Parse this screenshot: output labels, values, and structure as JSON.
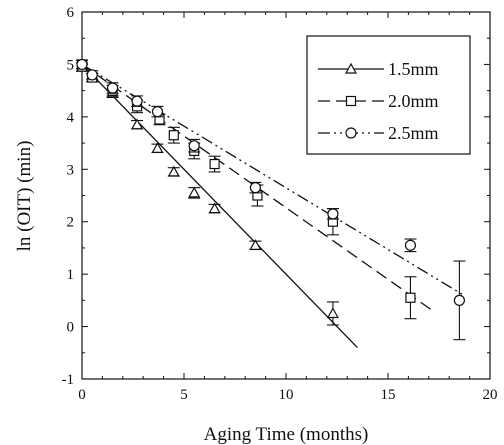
{
  "chart_data": {
    "type": "scatter",
    "xlabel": "Aging Time (months)",
    "ylabel": "ln (OIT) (min)",
    "xlim": [
      0,
      20
    ],
    "ylim": [
      -1,
      6
    ],
    "xticks": [
      0,
      5,
      10,
      15,
      20
    ],
    "yticks": [
      -1,
      0,
      1,
      2,
      3,
      4,
      5,
      6
    ],
    "grid": false,
    "legend_position": "top-right",
    "series": [
      {
        "name": "1.5mm",
        "marker": "triangle",
        "line_style": "solid",
        "points": [
          {
            "x": 0,
            "y": 4.95,
            "err": 0.08
          },
          {
            "x": 0.5,
            "y": 4.75,
            "err": 0.08
          },
          {
            "x": 1.5,
            "y": 4.45,
            "err": 0.08
          },
          {
            "x": 2.7,
            "y": 3.85,
            "err": 0.08
          },
          {
            "x": 3.7,
            "y": 3.4,
            "err": 0.08
          },
          {
            "x": 4.5,
            "y": 2.95,
            "err": 0.08
          },
          {
            "x": 5.5,
            "y": 2.55,
            "err": 0.1
          },
          {
            "x": 6.5,
            "y": 2.25,
            "err": 0.08
          },
          {
            "x": 8.5,
            "y": 1.55,
            "err": 0.08
          },
          {
            "x": 12.3,
            "y": 0.25,
            "err": 0.22
          }
        ],
        "fit": {
          "x": [
            0,
            13.5
          ],
          "y": [
            5.0,
            -0.4
          ]
        }
      },
      {
        "name": "2.0mm",
        "marker": "square",
        "line_style": "dashed",
        "points": [
          {
            "x": 0,
            "y": 5.0,
            "err": 0.08
          },
          {
            "x": 0.5,
            "y": 4.75,
            "err": 0.08
          },
          {
            "x": 1.5,
            "y": 4.5,
            "err": 0.1
          },
          {
            "x": 2.7,
            "y": 4.2,
            "err": 0.12
          },
          {
            "x": 3.8,
            "y": 3.95,
            "err": 0.1
          },
          {
            "x": 4.5,
            "y": 3.65,
            "err": 0.15
          },
          {
            "x": 5.5,
            "y": 3.35,
            "err": 0.15
          },
          {
            "x": 6.5,
            "y": 3.1,
            "err": 0.15
          },
          {
            "x": 8.6,
            "y": 2.5,
            "err": 0.2
          },
          {
            "x": 12.3,
            "y": 2.0,
            "err": 0.25
          },
          {
            "x": 16.1,
            "y": 0.55,
            "err": 0.4
          }
        ],
        "fit": {
          "x": [
            0,
            17.2
          ],
          "y": [
            5.0,
            0.3
          ]
        }
      },
      {
        "name": "2.5mm",
        "marker": "circle",
        "line_style": "dash-dot-dot",
        "points": [
          {
            "x": 0,
            "y": 5.0,
            "err": 0.08
          },
          {
            "x": 0.5,
            "y": 4.8,
            "err": 0.08
          },
          {
            "x": 1.5,
            "y": 4.55,
            "err": 0.1
          },
          {
            "x": 2.7,
            "y": 4.3,
            "err": 0.1
          },
          {
            "x": 3.7,
            "y": 4.1,
            "err": 0.1
          },
          {
            "x": 5.5,
            "y": 3.45,
            "err": 0.12
          },
          {
            "x": 8.5,
            "y": 2.65,
            "err": 0.1
          },
          {
            "x": 12.3,
            "y": 2.15,
            "err": 0.1
          },
          {
            "x": 16.1,
            "y": 1.55,
            "err": 0.12
          },
          {
            "x": 18.5,
            "y": 0.5,
            "err": 0.75
          }
        ],
        "fit": {
          "x": [
            0,
            18.7
          ],
          "y": [
            5.0,
            0.6
          ]
        }
      }
    ]
  }
}
